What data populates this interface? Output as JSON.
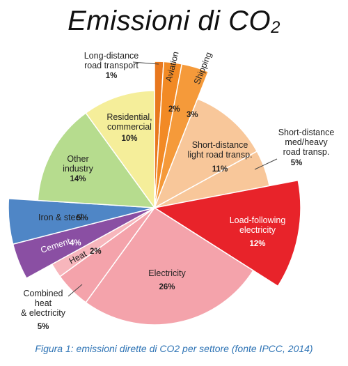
{
  "title": {
    "main": "Emissioni di CO",
    "subscript": "2"
  },
  "caption": "Figura 1: emissioni dirette di CO2 per settore (fonte IPCC, 2014)",
  "chart_data": {
    "type": "pie",
    "title": "Emissioni di CO2",
    "slices": [
      {
        "name": "Long-distance road transport",
        "label": [
          "Long-distance",
          "road transport"
        ],
        "value": 1,
        "value_label": "1%",
        "color": "#e8781e",
        "exploded": true,
        "callout": true
      },
      {
        "name": "Aviation",
        "label": [
          "Aviation"
        ],
        "value": 2,
        "value_label": "2%",
        "color": "#f28a25",
        "exploded": true,
        "rotated": true
      },
      {
        "name": "Shipping",
        "label": [
          "Shipping"
        ],
        "value": 3,
        "value_label": "3%",
        "color": "#f59a3a",
        "exploded": true,
        "rotated": true
      },
      {
        "name": "Short-distance light road transp.",
        "label": [
          "Short-distance",
          "light road transp."
        ],
        "value": 11,
        "value_label": "11%",
        "color": "#f8c79a",
        "exploded": false
      },
      {
        "name": "Short-distance med/heavy road transp.",
        "label": [
          "Short-distance",
          "med/heavy",
          "road transp."
        ],
        "value": 5,
        "value_label": "5%",
        "color": "#f8c79a",
        "exploded": false,
        "callout": true
      },
      {
        "name": "Load-following electricity",
        "label": [
          "Load-following",
          "electricity"
        ],
        "value": 12,
        "value_label": "12%",
        "color": "#e8232a",
        "exploded": true,
        "text_color": "#ffffff"
      },
      {
        "name": "Electricity",
        "label": [
          "Electricity"
        ],
        "value": 26,
        "value_label": "26%",
        "color": "#f4a3ab",
        "exploded": false
      },
      {
        "name": "Combined heat & electricity",
        "label": [
          "Combined",
          "heat",
          "& electricity"
        ],
        "value": 5,
        "value_label": "5%",
        "color": "#f4a3ab",
        "exploded": false,
        "callout": true
      },
      {
        "name": "Heat",
        "label": [
          "Heat"
        ],
        "value": 2,
        "value_label": "2%",
        "color": "#f7b6bc",
        "exploded": false,
        "rotated": true
      },
      {
        "name": "Cement",
        "label": [
          "Cement"
        ],
        "value": 4,
        "value_label": "4%",
        "color": "#8a4fa3",
        "exploded": true,
        "text_color": "#ffffff"
      },
      {
        "name": "Iron & steel",
        "label": [
          "Iron & steel"
        ],
        "value": 5,
        "value_label": "5%",
        "color": "#4f86c6",
        "exploded": true
      },
      {
        "name": "Other industry",
        "label": [
          "Other",
          "industry"
        ],
        "value": 14,
        "value_label": "14%",
        "color": "#b6dc8e",
        "exploded": false
      },
      {
        "name": "Residential, commercial",
        "label": [
          "Residential,",
          "commercial"
        ],
        "value": 10,
        "value_label": "10%",
        "color": "#f5ee9a",
        "exploded": false
      }
    ]
  }
}
